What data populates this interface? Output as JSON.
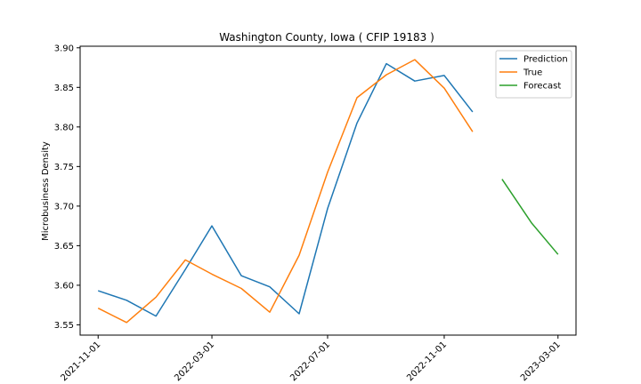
{
  "chart_data": {
    "type": "line",
    "title": "Washington County, Iowa ( CFIP 19183 )",
    "xlabel": "",
    "ylabel": "Microbusiness Density",
    "ylim": [
      3.537,
      3.902
    ],
    "yticks": [
      "3.55",
      "3.60",
      "3.65",
      "3.70",
      "3.75",
      "3.80",
      "3.85",
      "3.90"
    ],
    "xticks": [
      "2021-11-01",
      "2022-03-01",
      "2022-07-01",
      "2022-11-01",
      "2023-03-01"
    ],
    "grid": false,
    "legend_position": "top-right",
    "series": [
      {
        "name": "Prediction",
        "color": "#1f77b4",
        "x": [
          "2021-11-01",
          "2021-12-01",
          "2022-01-01",
          "2022-02-01",
          "2022-03-01",
          "2022-04-01",
          "2022-05-01",
          "2022-06-01",
          "2022-07-01",
          "2022-08-01",
          "2022-09-01",
          "2022-10-01",
          "2022-11-01",
          "2022-12-01"
        ],
        "values": [
          3.593,
          3.581,
          3.561,
          3.62,
          3.675,
          3.612,
          3.598,
          3.564,
          3.697,
          3.805,
          3.88,
          3.858,
          3.865,
          3.819
        ]
      },
      {
        "name": "True",
        "color": "#ff7f0e",
        "x": [
          "2021-11-01",
          "2021-12-01",
          "2022-01-01",
          "2022-02-01",
          "2022-03-01",
          "2022-04-01",
          "2022-05-01",
          "2022-06-01",
          "2022-07-01",
          "2022-08-01",
          "2022-09-01",
          "2022-10-01",
          "2022-11-01",
          "2022-12-01"
        ],
        "values": [
          3.571,
          3.553,
          3.585,
          3.632,
          3.614,
          3.596,
          3.566,
          3.638,
          3.743,
          3.837,
          3.866,
          3.885,
          3.849,
          3.794
        ]
      },
      {
        "name": "Forecast",
        "color": "#2ca02c",
        "x": [
          "2023-01-01",
          "2023-02-01",
          "2023-03-01"
        ],
        "values": [
          3.734,
          3.679,
          3.639
        ]
      }
    ]
  }
}
